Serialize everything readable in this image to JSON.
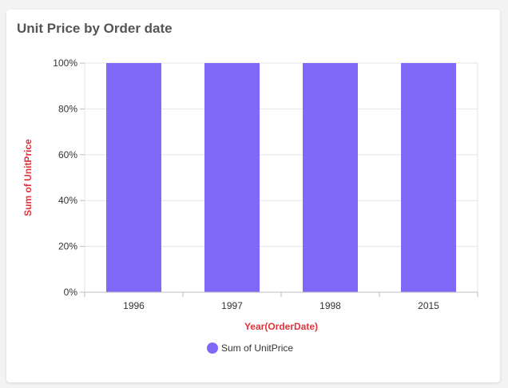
{
  "card": {
    "title": "Unit Price by Order date"
  },
  "colors": {
    "bar": "#8069F8",
    "axis_title": "#E0333A",
    "grid": "#E5E5E5",
    "tick_text": "#333333"
  },
  "chart_data": {
    "type": "bar",
    "stacked": "100%",
    "title": "Unit Price by Order date",
    "xlabel": "Year(OrderDate)",
    "ylabel": "Sum of UnitPrice",
    "categories": [
      "1996",
      "1997",
      "1998",
      "2015"
    ],
    "series": [
      {
        "name": "Sum of UnitPrice",
        "values": [
          100,
          100,
          100,
          100
        ]
      }
    ],
    "ylim": [
      0,
      100
    ],
    "yticks": [
      "0%",
      "20%",
      "40%",
      "60%",
      "80%",
      "100%"
    ],
    "grid": true,
    "legend": "bottom-center"
  }
}
